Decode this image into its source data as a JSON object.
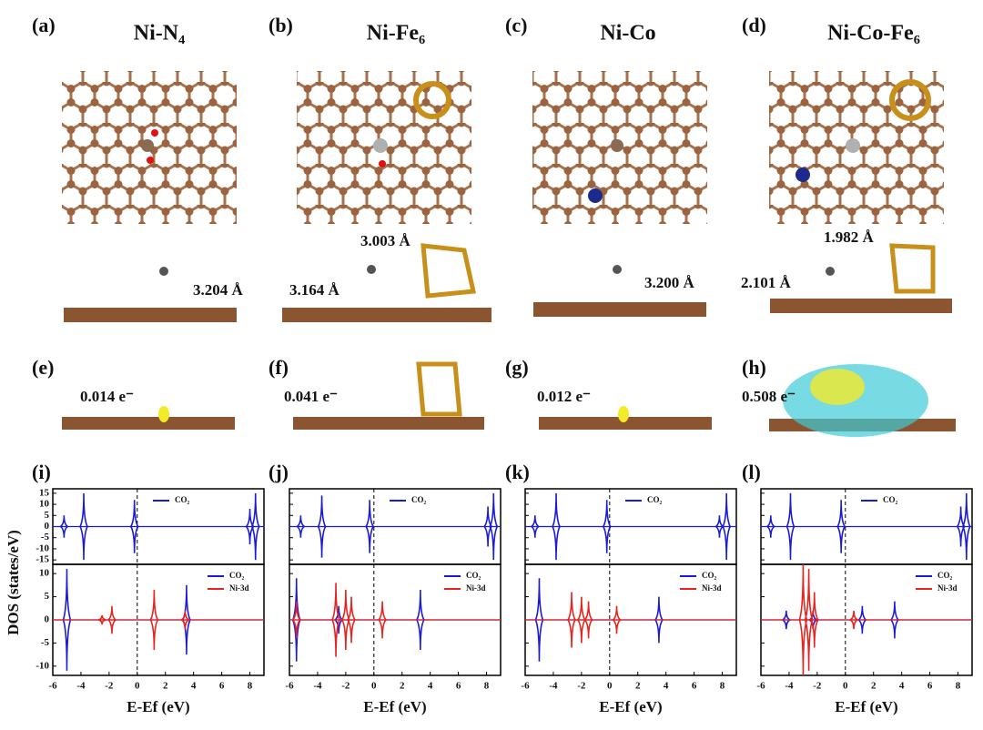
{
  "figure": {
    "panels": [
      {
        "label": "(a)",
        "title": "Ni-N₄"
      },
      {
        "label": "(b)",
        "title": "Ni-Fe₆"
      },
      {
        "label": "(c)",
        "title": "Ni-Co"
      },
      {
        "label": "(d)",
        "title": "Ni-Co-Fe₆"
      }
    ],
    "side_labels": [
      "3.204 Å",
      "3.164 Å",
      "3.003 Å",
      "3.200 Å",
      "2.101 Å",
      "1.982 Å"
    ],
    "charge_panels": [
      {
        "label": "(e)",
        "charge": "0.014 e⁻"
      },
      {
        "label": "(f)",
        "charge": "0.041 e⁻"
      },
      {
        "label": "(g)",
        "charge": "0.012 e⁻"
      },
      {
        "label": "(h)",
        "charge": "0.508 e⁻"
      }
    ]
  },
  "chart_data": [
    {
      "type": "dos",
      "label": "(i)",
      "ylabel": "DOS (states/eV)",
      "xlabel": "E-Ef (eV)",
      "xlim": [
        -6,
        9
      ],
      "xticks": [
        -6,
        -4,
        -2,
        0,
        2,
        4,
        6,
        8
      ],
      "top": {
        "ylim": [
          -17,
          17
        ],
        "yticks": [
          -15,
          -10,
          -5,
          0,
          5,
          10,
          15
        ],
        "series": [
          {
            "name": "CO₂",
            "color": "#1a1adb",
            "x": [
              -5.2,
              -3.8,
              -0.2,
              8.0,
              8.4
            ],
            "values": [
              5,
              15,
              12,
              8,
              15
            ]
          }
        ]
      },
      "bottom": {
        "ylim": [
          -12,
          12
        ],
        "yticks": [
          -10,
          -5,
          0,
          5,
          10
        ],
        "series": [
          {
            "name": "CO₂",
            "color": "#1a1adb",
            "x": [
              -5,
              3.5
            ],
            "values": [
              11,
              7.5
            ]
          },
          {
            "name": "Ni-3d",
            "color": "#e8221c",
            "x": [
              -2.5,
              -1.8,
              1.2,
              3.4
            ],
            "values": [
              1,
              3,
              6.5,
              2
            ]
          }
        ]
      }
    },
    {
      "type": "dos",
      "label": "(j)",
      "xlabel": "E-Ef (eV)",
      "xlim": [
        -6,
        9
      ],
      "xticks": [
        -6,
        -4,
        -2,
        0,
        2,
        4,
        6,
        8
      ],
      "top": {
        "ylim": [
          -17,
          17
        ],
        "yticks": [
          -15,
          -10,
          -5,
          0,
          5,
          10,
          15
        ],
        "series": [
          {
            "name": "CO₂",
            "color": "#1a1adb",
            "x": [
              -5.2,
              -3.7,
              -0.3,
              8.1,
              8.5
            ],
            "values": [
              5,
              14,
              12,
              9,
              15
            ]
          }
        ]
      },
      "bottom": {
        "ylim": [
          -12,
          12
        ],
        "yticks": [
          -10,
          -5,
          0,
          5,
          10
        ],
        "series": [
          {
            "name": "CO₂",
            "color": "#1a1adb",
            "x": [
              -5.5,
              -2.5,
              3.3
            ],
            "values": [
              9,
              3,
              6.5
            ]
          },
          {
            "name": "Ni-3d",
            "color": "#e8221c",
            "x": [
              -5.5,
              -2.7,
              -2,
              -1.6,
              0.6
            ],
            "values": [
              4,
              8,
              6.5,
              5,
              4
            ]
          }
        ]
      }
    },
    {
      "type": "dos",
      "label": "(k)",
      "xlabel": "E-Ef (eV)",
      "xlim": [
        -6,
        9
      ],
      "xticks": [
        -6,
        -4,
        -2,
        0,
        2,
        4,
        6,
        8
      ],
      "top": {
        "ylim": [
          -17,
          17
        ],
        "yticks": [
          -15,
          -10,
          -5,
          0,
          5,
          10,
          15
        ],
        "series": [
          {
            "name": "CO₂",
            "color": "#1a1adb",
            "x": [
              -5.3,
              -3.8,
              -0.2,
              7.8,
              8.3
            ],
            "values": [
              5,
              15,
              12,
              5,
              15
            ]
          }
        ]
      },
      "bottom": {
        "ylim": [
          -12,
          12
        ],
        "yticks": [
          -10,
          -5,
          0,
          5,
          10
        ],
        "series": [
          {
            "name": "CO₂",
            "color": "#1a1adb",
            "x": [
              -5,
              3.5
            ],
            "values": [
              9,
              5
            ]
          },
          {
            "name": "Ni-3d",
            "color": "#e8221c",
            "x": [
              -2.7,
              -2,
              -1.5,
              0.5
            ],
            "values": [
              6,
              5,
              4,
              3
            ]
          }
        ]
      }
    },
    {
      "type": "dos",
      "label": "(l)",
      "xlabel": "E-Ef (eV)",
      "xlim": [
        -6,
        9
      ],
      "xticks": [
        -6,
        -4,
        -2,
        0,
        2,
        4,
        6,
        8
      ],
      "top": {
        "ylim": [
          -17,
          17
        ],
        "yticks": [
          -15,
          -10,
          -5,
          0,
          5,
          10,
          15
        ],
        "series": [
          {
            "name": "CO₂",
            "color": "#1a1adb",
            "x": [
              -5.3,
              -3.9,
              -0.3,
              8.2,
              8.6
            ],
            "values": [
              5,
              15,
              12,
              9,
              15
            ]
          }
        ]
      },
      "bottom": {
        "ylim": [
          -12,
          12
        ],
        "yticks": [
          -10,
          -5,
          0,
          5,
          10
        ],
        "series": [
          {
            "name": "CO₂",
            "color": "#1a1adb",
            "x": [
              -4.2,
              -2.3,
              1.2,
              3.5
            ],
            "values": [
              2,
              2,
              3,
              4
            ]
          },
          {
            "name": "Ni-3d",
            "color": "#e8221c",
            "x": [
              -3,
              -2.6,
              -2.2,
              0.6
            ],
            "values": [
              12,
              11,
              6,
              2
            ]
          }
        ]
      }
    }
  ]
}
